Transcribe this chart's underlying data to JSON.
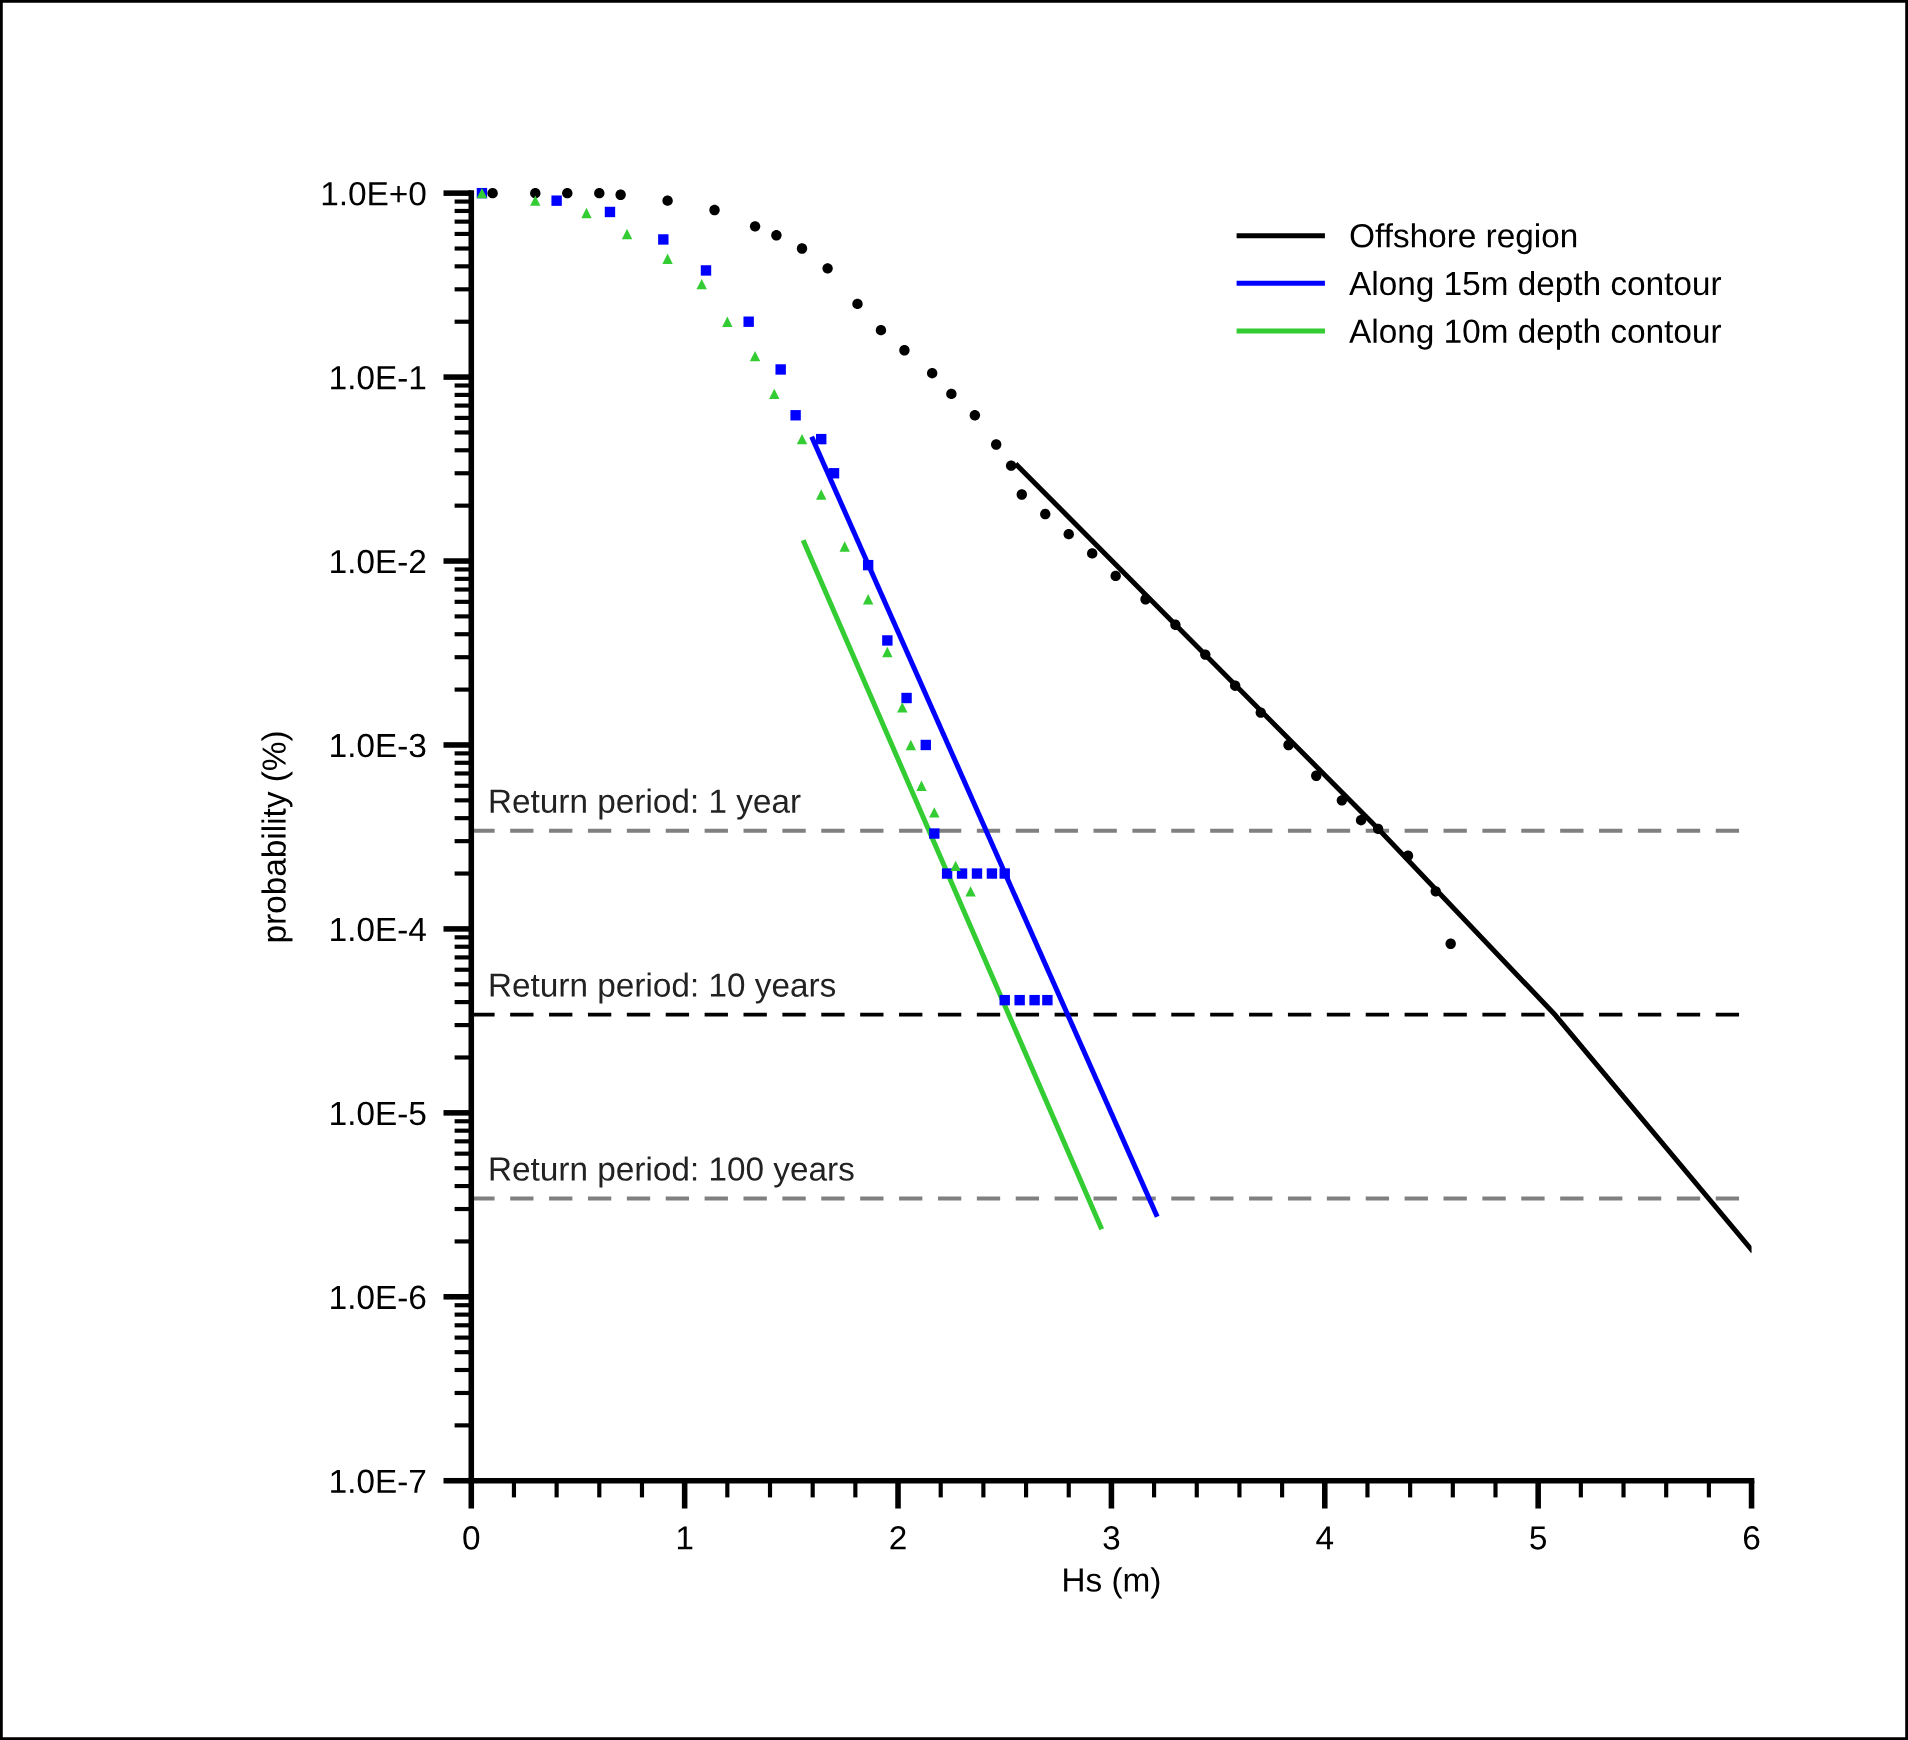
{
  "chart_data": {
    "type": "scatter",
    "xlabel": "Hs (m)",
    "ylabel": "probability (%)",
    "log": "y",
    "xlim": [
      0,
      6
    ],
    "ylim": [
      1e-07,
      1
    ],
    "xticks": [
      0,
      1,
      2,
      3,
      4,
      5,
      6
    ],
    "yticks": [
      {
        "value": 1,
        "label": "1.0E+0"
      },
      {
        "value": 0.1,
        "label": "1.0E-1"
      },
      {
        "value": 0.01,
        "label": "1.0E-2"
      },
      {
        "value": 0.001,
        "label": "1.0E-3"
      },
      {
        "value": 0.0001,
        "label": "1.0E-4"
      },
      {
        "value": 1e-05,
        "label": "1.0E-5"
      },
      {
        "value": 1e-06,
        "label": "1.0E-6"
      },
      {
        "value": 1e-07,
        "label": "1.0E-7"
      }
    ],
    "grid": false,
    "legend": "top right",
    "series": [
      {
        "marker": "circle",
        "color": "#000000",
        "x": [
          0.1,
          0.3,
          0.45,
          0.6,
          0.7,
          0.92,
          1.14,
          1.33,
          1.43,
          1.55,
          1.67,
          1.81,
          1.92,
          2.03,
          2.16,
          2.25,
          2.36,
          2.46,
          2.53,
          2.58,
          2.69,
          2.8,
          2.91,
          3.02,
          3.16,
          3.3,
          3.44,
          3.58,
          3.7,
          3.83,
          3.96,
          4.08,
          4.17,
          4.25,
          4.39,
          4.52,
          4.59
        ],
        "values": [
          1.0,
          1.0,
          1.0,
          1.0,
          0.98,
          0.91,
          0.81,
          0.66,
          0.59,
          0.5,
          0.39,
          0.25,
          0.18,
          0.14,
          0.105,
          0.081,
          0.062,
          0.043,
          0.033,
          0.023,
          0.018,
          0.014,
          0.011,
          0.0083,
          0.0062,
          0.0045,
          0.0031,
          0.0021,
          0.0015,
          0.001,
          0.00068,
          0.0005,
          0.00039,
          0.00035,
          0.00025,
          0.00016,
          8.3e-05
        ]
      },
      {
        "marker": "square",
        "color": "#0000ff",
        "x": [
          0.05,
          0.4,
          0.65,
          0.9,
          1.1,
          1.3,
          1.45,
          1.52,
          1.64,
          1.7,
          1.86,
          1.95,
          2.04,
          2.13,
          2.17,
          2.23,
          2.3,
          2.37,
          2.44,
          2.5,
          2.5,
          2.57,
          2.64,
          2.7
        ],
        "values": [
          1.0,
          0.91,
          0.79,
          0.56,
          0.38,
          0.2,
          0.11,
          0.062,
          0.046,
          0.03,
          0.0095,
          0.0037,
          0.0018,
          0.001,
          0.00033,
          0.0002,
          0.0002,
          0.0002,
          0.0002,
          0.0002,
          4.1e-05,
          4.1e-05,
          4.1e-05,
          4.1e-05
        ]
      },
      {
        "marker": "triangle",
        "color": "#33cc33",
        "x": [
          0.05,
          0.3,
          0.54,
          0.73,
          0.92,
          1.08,
          1.2,
          1.33,
          1.42,
          1.55,
          1.64,
          1.75,
          1.86,
          1.95,
          2.02,
          2.06,
          2.11,
          2.17,
          2.27,
          2.34
        ],
        "values": [
          1.0,
          0.91,
          0.78,
          0.6,
          0.44,
          0.32,
          0.2,
          0.13,
          0.081,
          0.046,
          0.023,
          0.012,
          0.0062,
          0.0032,
          0.0016,
          0.001,
          0.0006,
          0.00043,
          0.00022,
          0.00016
        ]
      },
      {
        "type": "line",
        "name": "Offshore region",
        "color": "#000000",
        "line_style": "solid",
        "x": [
          2.56,
          4.25,
          5.08,
          6.0
        ],
        "values": [
          0.033,
          0.00035,
          3.4e-05,
          1.8e-06
        ]
      },
      {
        "type": "line",
        "name": "Along 15m depth contour",
        "color": "#0000ff",
        "line_style": "solid",
        "x": [
          1.6,
          3.21
        ],
        "values": [
          0.046,
          2.8e-06
        ]
      },
      {
        "type": "line",
        "name": "Along 10m depth contour",
        "color": "#33cc33",
        "line_style": "solid",
        "x": [
          1.56,
          2.95
        ],
        "values": [
          0.0126,
          2.4e-06
        ]
      }
    ],
    "ref_lines": [
      {
        "axis": "y",
        "value": 0.000342,
        "color": "#808080",
        "line_style": "dashed"
      },
      {
        "axis": "y",
        "value": 3.42e-05,
        "color": "#000000",
        "line_style": "dashed"
      },
      {
        "axis": "y",
        "value": 3.42e-06,
        "color": "#808080",
        "line_style": "dashed"
      }
    ],
    "annotations": [
      {
        "text": "Return period: 1 year",
        "y": 0.000342
      },
      {
        "text": "Return period: 10 years",
        "y": 3.42e-05
      },
      {
        "text": "Return period: 100 years",
        "y": 3.42e-06
      }
    ]
  }
}
